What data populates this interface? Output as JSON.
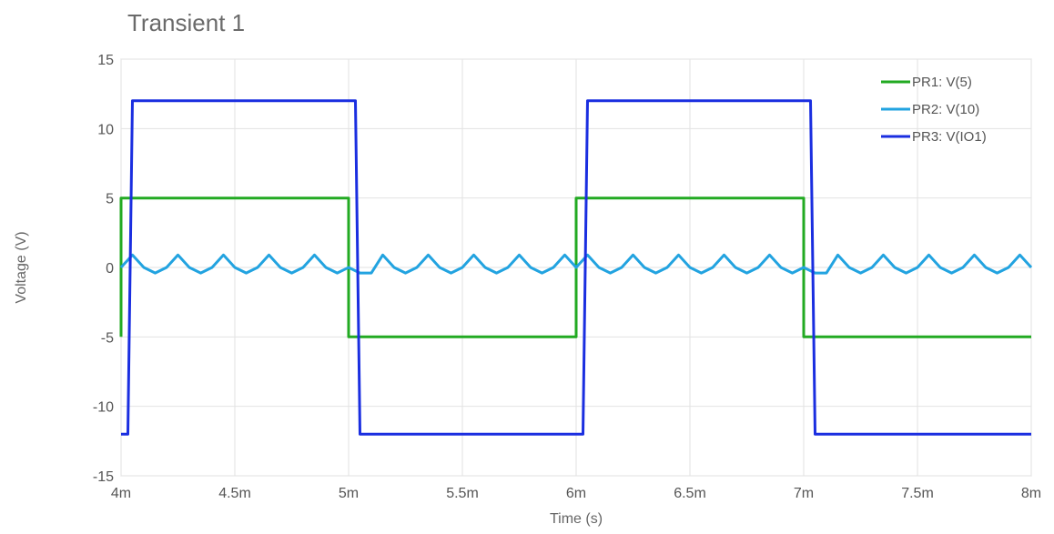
{
  "chart_data": {
    "type": "line",
    "title": "Transient 1",
    "xlabel": "Time (s)",
    "ylabel": "Voltage (V)",
    "xlim": [
      0.004,
      0.008
    ],
    "ylim": [
      -15,
      15
    ],
    "x_ticks": [
      0.004,
      0.0045,
      0.005,
      0.0055,
      0.006,
      0.0065,
      0.007,
      0.0075,
      0.008
    ],
    "x_tick_labels": [
      "4m",
      "4.5m",
      "5m",
      "5.5m",
      "6m",
      "6.5m",
      "7m",
      "7.5m",
      "8m"
    ],
    "y_ticks": [
      15,
      10,
      5,
      0,
      -5,
      -10,
      -15
    ],
    "y_tick_labels": [
      "15",
      "10",
      "5",
      "0",
      "-5",
      "-10",
      "-15"
    ],
    "grid": true,
    "legend_position": "top-right",
    "series": [
      {
        "name": "PR1: V(5)",
        "color": "#22aa22",
        "x": [
          0.004,
          0.004,
          0.005,
          0.005,
          0.006,
          0.006,
          0.007,
          0.007,
          0.008
        ],
        "y": [
          -5,
          5,
          5,
          -5,
          -5,
          5,
          5,
          -5,
          -5
        ]
      },
      {
        "name": "PR2: V(10)",
        "color": "#22a3e0",
        "x": [
          0.004,
          0.00405,
          0.0041,
          0.00415,
          0.0042,
          0.00425,
          0.0043,
          0.00435,
          0.0044,
          0.00445,
          0.0045,
          0.00455,
          0.0046,
          0.00465,
          0.0047,
          0.00475,
          0.0048,
          0.00485,
          0.0049,
          0.00495,
          0.005,
          0.00505,
          0.0051,
          0.00515,
          0.0052,
          0.00525,
          0.0053,
          0.00535,
          0.0054,
          0.00545,
          0.0055,
          0.00555,
          0.0056,
          0.00565,
          0.0057,
          0.00575,
          0.0058,
          0.00585,
          0.0059,
          0.00595,
          0.006,
          0.00605,
          0.0061,
          0.00615,
          0.0062,
          0.00625,
          0.0063,
          0.00635,
          0.0064,
          0.00645,
          0.0065,
          0.00655,
          0.0066,
          0.00665,
          0.0067,
          0.00675,
          0.0068,
          0.00685,
          0.0069,
          0.00695,
          0.007,
          0.00705,
          0.0071,
          0.00715,
          0.0072,
          0.00725,
          0.0073,
          0.00735,
          0.0074,
          0.00745,
          0.0075,
          0.00755,
          0.0076,
          0.00765,
          0.0077,
          0.00775,
          0.0078,
          0.00785,
          0.0079,
          0.00795,
          0.008
        ],
        "y": [
          0,
          0.9,
          0,
          -0.4,
          0,
          0.9,
          0,
          -0.4,
          0,
          0.9,
          0,
          -0.4,
          0,
          0.9,
          0,
          -0.4,
          0,
          0.9,
          0,
          -0.4,
          0,
          -0.4,
          -0.4,
          0.9,
          0,
          -0.4,
          0,
          0.9,
          0,
          -0.4,
          0,
          0.9,
          0,
          -0.4,
          0,
          0.9,
          0,
          -0.4,
          0,
          0.9,
          0,
          0.9,
          0,
          -0.4,
          0,
          0.9,
          0,
          -0.4,
          0,
          0.9,
          0,
          -0.4,
          0,
          0.9,
          0,
          -0.4,
          0,
          0.9,
          0,
          -0.4,
          0,
          -0.4,
          -0.4,
          0.9,
          0,
          -0.4,
          0,
          0.9,
          0,
          -0.4,
          0,
          0.9,
          0,
          -0.4,
          0,
          0.9,
          0,
          -0.4,
          0,
          0.9,
          0
        ]
      },
      {
        "name": "PR3: V(IO1)",
        "color": "#1a2ee0",
        "x": [
          0.004,
          0.00403,
          0.00405,
          0.00503,
          0.00505,
          0.00603,
          0.00605,
          0.00703,
          0.00705,
          0.008
        ],
        "y": [
          -12,
          -12,
          12,
          12,
          -12,
          -12,
          12,
          12,
          -12,
          -12
        ]
      }
    ]
  }
}
